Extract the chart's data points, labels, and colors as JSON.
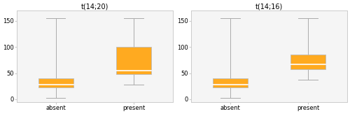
{
  "panels": [
    {
      "title": "t(14;20)",
      "categories": [
        "absent",
        "present"
      ],
      "boxes": [
        {
          "q1": 22,
          "median": 28,
          "q3": 40,
          "whisker_low": 2,
          "whisker_high": 155
        },
        {
          "q1": 48,
          "median": 55,
          "q3": 100,
          "whisker_low": 28,
          "whisker_high": 155
        }
      ]
    },
    {
      "title": "t(14;16)",
      "categories": [
        "absent",
        "present"
      ],
      "boxes": [
        {
          "q1": 22,
          "median": 28,
          "q3": 40,
          "whisker_low": 2,
          "whisker_high": 155
        },
        {
          "q1": 57,
          "median": 67,
          "q3": 85,
          "whisker_low": 38,
          "whisker_high": 155
        }
      ]
    }
  ],
  "box_color": "#FFAA20",
  "box_edge_color": "#BBBBBB",
  "median_color": "#FFFFFF",
  "whisker_color": "#AAAAAA",
  "cap_color": "#AAAAAA",
  "background_color": "#FFFFFF",
  "panel_bg": "#F5F5F5",
  "border_color": "#CCCCCC",
  "ylim": [
    -5,
    170
  ],
  "yticks": [
    0,
    50,
    100,
    150
  ],
  "title_fontsize": 7,
  "tick_fontsize": 6,
  "box_width": 0.45
}
